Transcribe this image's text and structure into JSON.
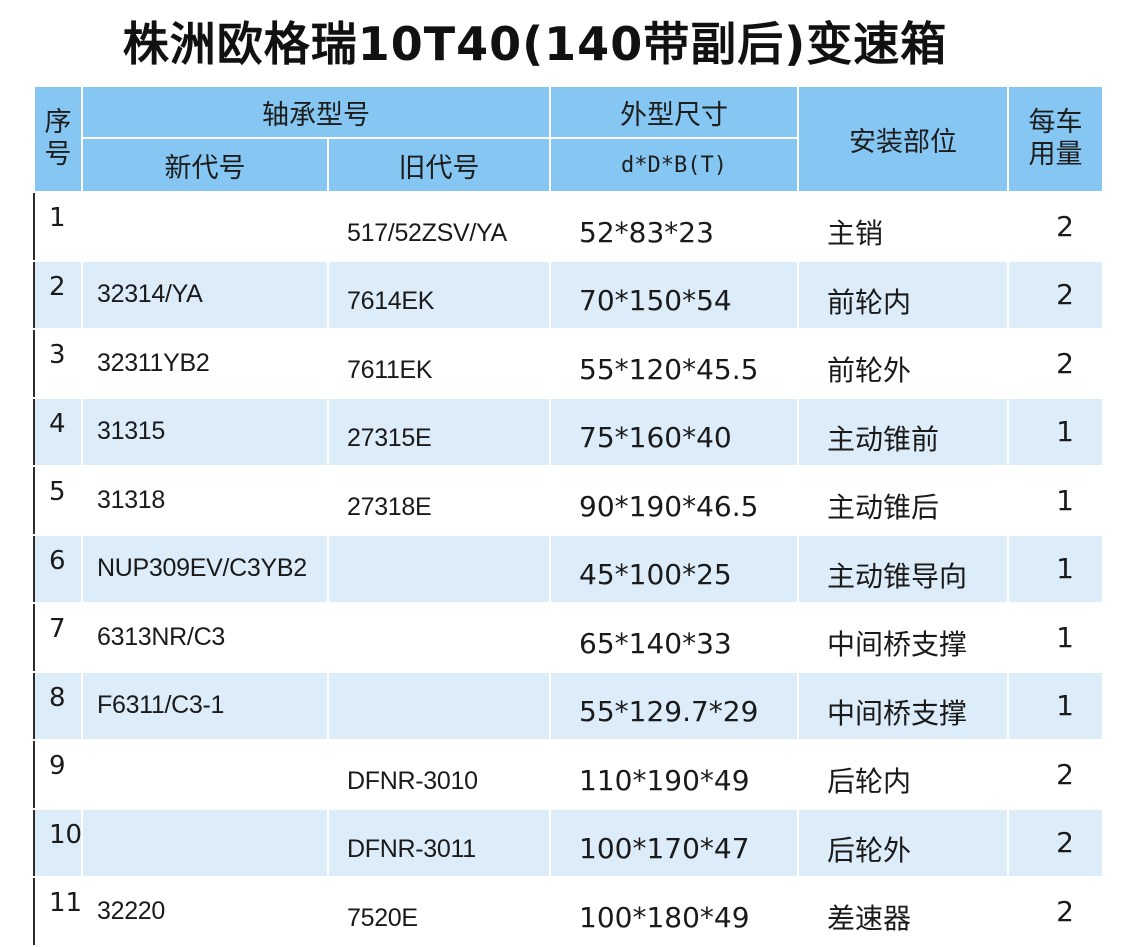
{
  "title": "株洲欧格瑞10T40(140带副后)变速箱",
  "header": {
    "seq": [
      "序",
      "号"
    ],
    "bearing_model": "轴承型号",
    "new_code": "新代号",
    "old_code": "旧代号",
    "dimensions": "外型尺寸",
    "dimensions_unit": "d*D*B(T)",
    "position": "安装部位",
    "qty": [
      "每车",
      "用量"
    ]
  },
  "rows": [
    {
      "seq": "1",
      "new": "",
      "old": "517/52ZSV/YA",
      "dim": "52*83*23",
      "pos": "主销",
      "qty": "2"
    },
    {
      "seq": "2",
      "new": "32314/YA",
      "old": "7614EK",
      "dim": "70*150*54",
      "pos": "前轮内",
      "qty": "2"
    },
    {
      "seq": "3",
      "new": "32311YB2",
      "old": "7611EK",
      "dim": "55*120*45.5",
      "pos": "前轮外",
      "qty": "2"
    },
    {
      "seq": "4",
      "new": "31315",
      "old": "27315E",
      "dim": "75*160*40",
      "pos": "主动锥前",
      "qty": "1"
    },
    {
      "seq": "5",
      "new": "31318",
      "old": "27318E",
      "dim": "90*190*46.5",
      "pos": "主动锥后",
      "qty": "1"
    },
    {
      "seq": "6",
      "new": "NUP309EV/C3YB2",
      "old": "",
      "dim": "45*100*25",
      "pos": "主动锥导向",
      "qty": "1"
    },
    {
      "seq": "7",
      "new": "6313NR/C3",
      "old": "",
      "dim": "65*140*33",
      "pos": "中间桥支撑",
      "qty": "1"
    },
    {
      "seq": "8",
      "new": "F6311/C3-1",
      "old": "",
      "dim": "55*129.7*29",
      "pos": "中间桥支撑",
      "qty": "1"
    },
    {
      "seq": "9",
      "new": "",
      "old": "DFNR-3010",
      "dim": "110*190*49",
      "pos": "后轮内",
      "qty": "2"
    },
    {
      "seq": "10",
      "new": "",
      "old": "DFNR-3011",
      "dim": "100*170*47",
      "pos": "后轮外",
      "qty": "2"
    },
    {
      "seq": "11",
      "new": "32220",
      "old": "7520E",
      "dim": "100*180*49",
      "pos": "差速器",
      "qty": "2"
    }
  ]
}
